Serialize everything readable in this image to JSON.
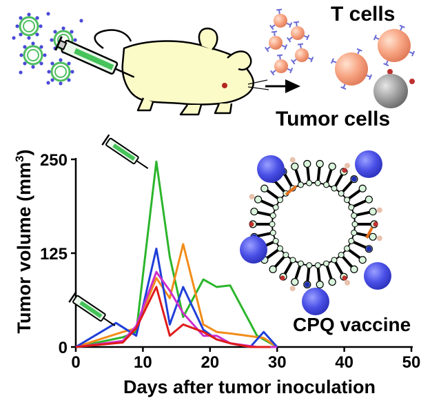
{
  "header": {
    "t_cells_label": "T cells",
    "tumor_cells_label": "Tumor cells"
  },
  "vaccine_label": "CPQ vaccine",
  "icons": [
    "syringe-icon",
    "mouse-illustration",
    "liposome-cluster-icon",
    "t-cell-icon",
    "tumor-cell-icon",
    "arrow-right-icon",
    "cpq-liposome-diagram"
  ],
  "chart_data": {
    "type": "line",
    "title": "",
    "xlabel": "Days after tumor inoculation",
    "ylabel": "Tumor volume (mm³)",
    "ylabel_main": "Tumor volume (mm",
    "ylabel_sup": "3",
    "ylabel_close": ")",
    "xlim": [
      0,
      50
    ],
    "ylim": [
      0,
      250
    ],
    "xticks": [
      0,
      10,
      20,
      30,
      40,
      50
    ],
    "yticks": [
      0,
      125,
      250
    ],
    "grid": false,
    "legend": "none",
    "injection_days": [
      7,
      12
    ],
    "series": [
      {
        "color": "#2bb52b",
        "x": [
          0,
          7,
          9,
          12,
          14,
          16,
          19,
          21,
          23,
          27,
          30
        ],
        "y": [
          0,
          13,
          20,
          247,
          120,
          40,
          90,
          80,
          82,
          15,
          0
        ]
      },
      {
        "color": "#f28c1a",
        "x": [
          0,
          7,
          9,
          12,
          14,
          16,
          19,
          21,
          23,
          28,
          30
        ],
        "y": [
          0,
          20,
          25,
          92,
          65,
          137,
          30,
          20,
          18,
          12,
          0
        ]
      },
      {
        "color": "#1f3fd8",
        "x": [
          0,
          6,
          9,
          12,
          14,
          16,
          19,
          21,
          23,
          26,
          28,
          30
        ],
        "y": [
          0,
          32,
          15,
          131,
          30,
          80,
          23,
          10,
          5,
          0,
          20,
          0
        ]
      },
      {
        "color": "#cc2fcc",
        "x": [
          0,
          7,
          9,
          12,
          14,
          16,
          19,
          21,
          23,
          27,
          30
        ],
        "y": [
          0,
          8,
          28,
          100,
          75,
          45,
          15,
          15,
          5,
          0,
          0
        ]
      },
      {
        "color": "#e01b1b",
        "x": [
          0,
          7,
          9,
          12,
          14,
          16,
          19,
          21,
          23,
          26,
          29
        ],
        "y": [
          0,
          6,
          25,
          80,
          15,
          30,
          20,
          10,
          5,
          0,
          0
        ]
      }
    ]
  }
}
